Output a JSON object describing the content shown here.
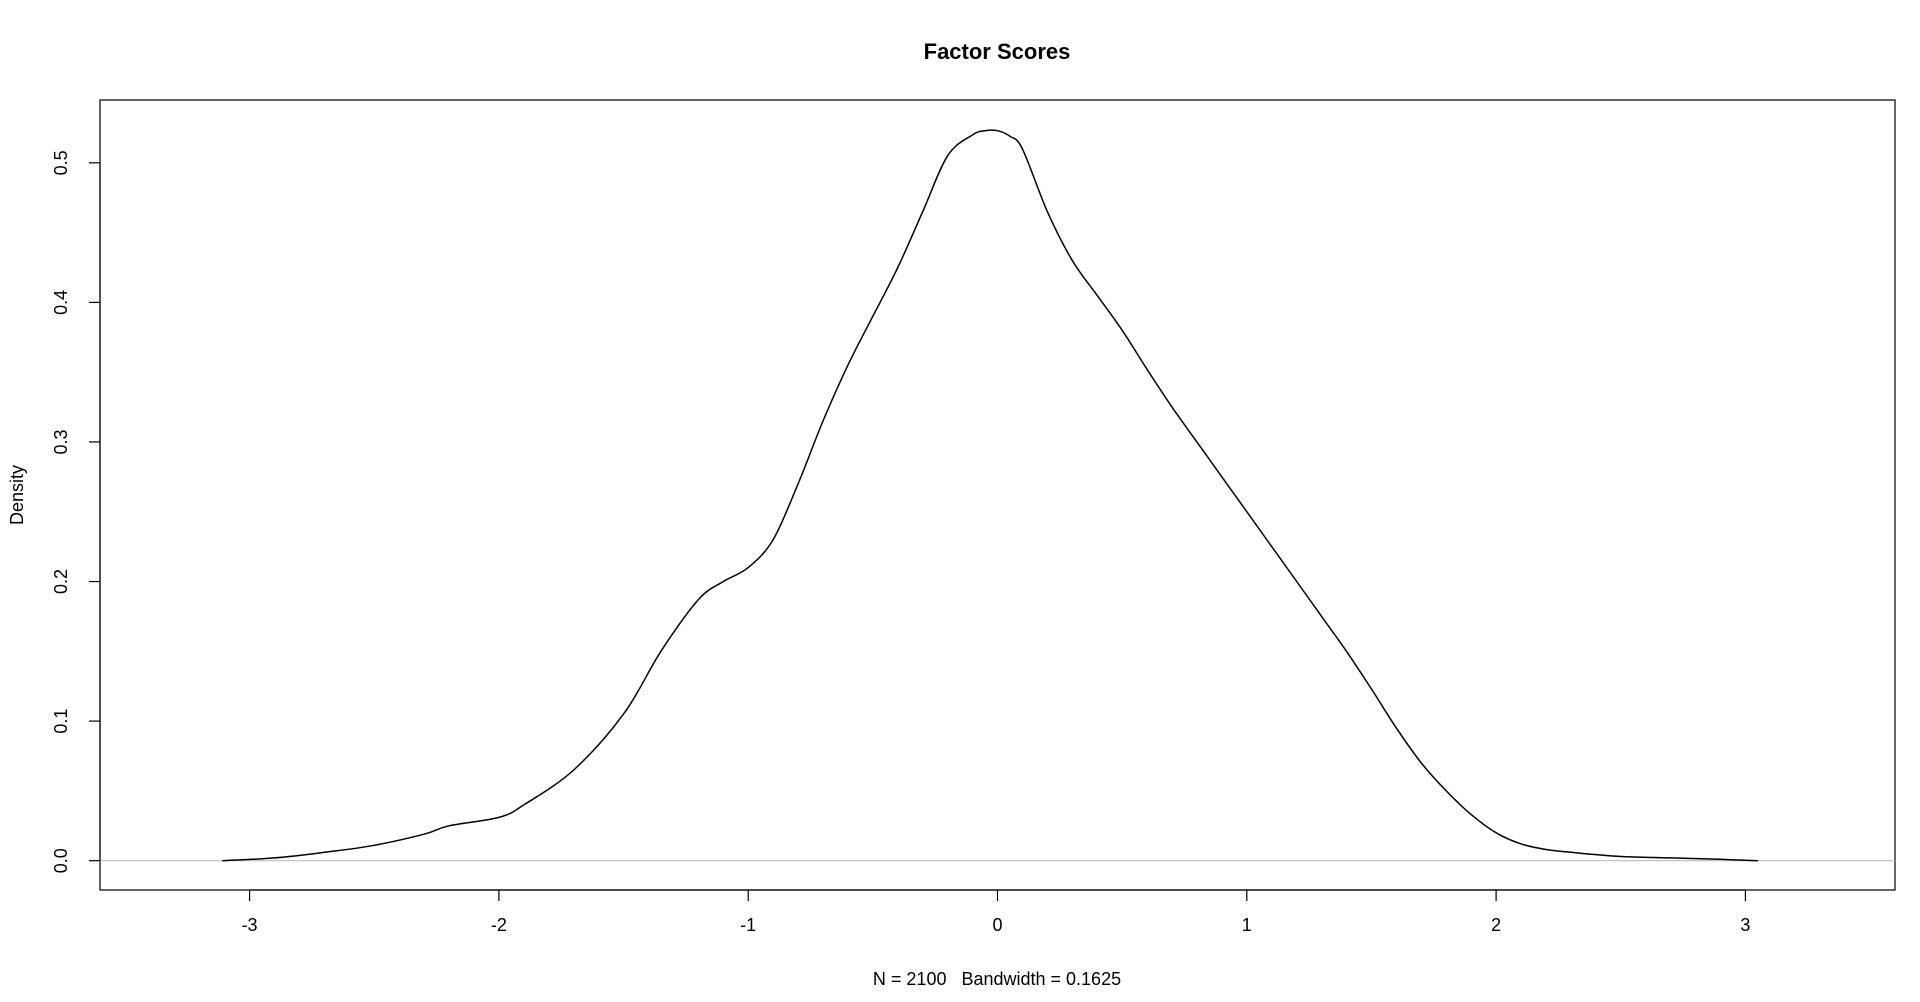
{
  "chart_data": {
    "type": "line",
    "title": "Factor Scores",
    "xlabel": "N = 2100   Bandwidth = 0.1625",
    "ylabel": "Density",
    "xlim": [
      -3.6,
      3.6
    ],
    "ylim": [
      -0.021,
      0.545
    ],
    "xticks": [
      -3,
      -2,
      -1,
      0,
      1,
      2,
      3
    ],
    "xtick_labels": [
      "-3",
      "-2",
      "-1",
      "0",
      "1",
      "2",
      "3"
    ],
    "yticks": [
      0.0,
      0.1,
      0.2,
      0.3,
      0.4,
      0.5
    ],
    "ytick_labels": [
      "0.0",
      "0.1",
      "0.2",
      "0.3",
      "0.4",
      "0.5"
    ],
    "grid": false,
    "legend": "none",
    "zero_line": 0.0,
    "series": [
      {
        "x": [
          -3.11,
          -2.9,
          -2.7,
          -2.5,
          -2.3,
          -2.2,
          -2.0,
          -1.9,
          -1.7,
          -1.5,
          -1.35,
          -1.2,
          -1.1,
          -1.0,
          -0.9,
          -0.8,
          -0.7,
          -0.6,
          -0.5,
          -0.4,
          -0.3,
          -0.2,
          -0.1,
          -0.05,
          0.0,
          0.05,
          0.1,
          0.2,
          0.3,
          0.4,
          0.5,
          0.6,
          0.7,
          0.8,
          0.9,
          1.0,
          1.1,
          1.2,
          1.3,
          1.4,
          1.5,
          1.6,
          1.7,
          1.8,
          1.9,
          2.0,
          2.1,
          2.2,
          2.3,
          2.5,
          2.7,
          2.9,
          3.05
        ],
        "y": [
          0.0,
          0.002,
          0.006,
          0.011,
          0.019,
          0.025,
          0.031,
          0.04,
          0.065,
          0.105,
          0.15,
          0.187,
          0.2,
          0.21,
          0.23,
          0.27,
          0.315,
          0.355,
          0.39,
          0.425,
          0.465,
          0.505,
          0.52,
          0.523,
          0.523,
          0.519,
          0.51,
          0.465,
          0.43,
          0.405,
          0.38,
          0.352,
          0.325,
          0.3,
          0.275,
          0.25,
          0.225,
          0.2,
          0.175,
          0.15,
          0.123,
          0.095,
          0.07,
          0.05,
          0.033,
          0.02,
          0.012,
          0.008,
          0.006,
          0.003,
          0.002,
          0.001,
          0.0
        ],
        "color": "#000000"
      }
    ],
    "colors": {
      "curve": "#000000",
      "zero_line": "#bebebe",
      "box": "#000000"
    }
  }
}
